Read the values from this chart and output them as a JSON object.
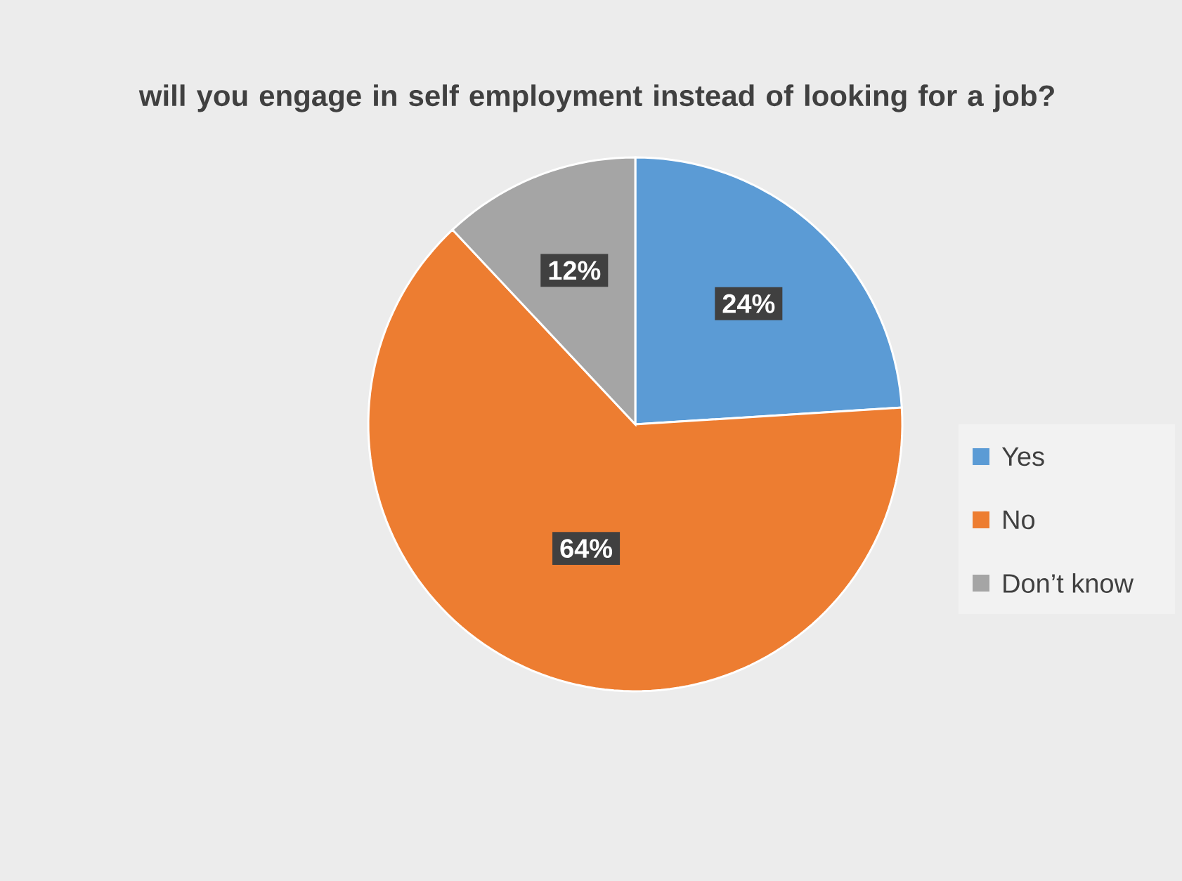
{
  "chart_data": {
    "type": "pie",
    "title": "will you engage in self employment instead of looking for a job?",
    "categories": [
      "Yes",
      "No",
      "Don’t know"
    ],
    "values": [
      24,
      64,
      12
    ],
    "value_labels": [
      "24%",
      "64%",
      "12%"
    ],
    "colors": [
      "#5b9bd5",
      "#ed7d31",
      "#a5a5a5"
    ],
    "legend": "right"
  }
}
